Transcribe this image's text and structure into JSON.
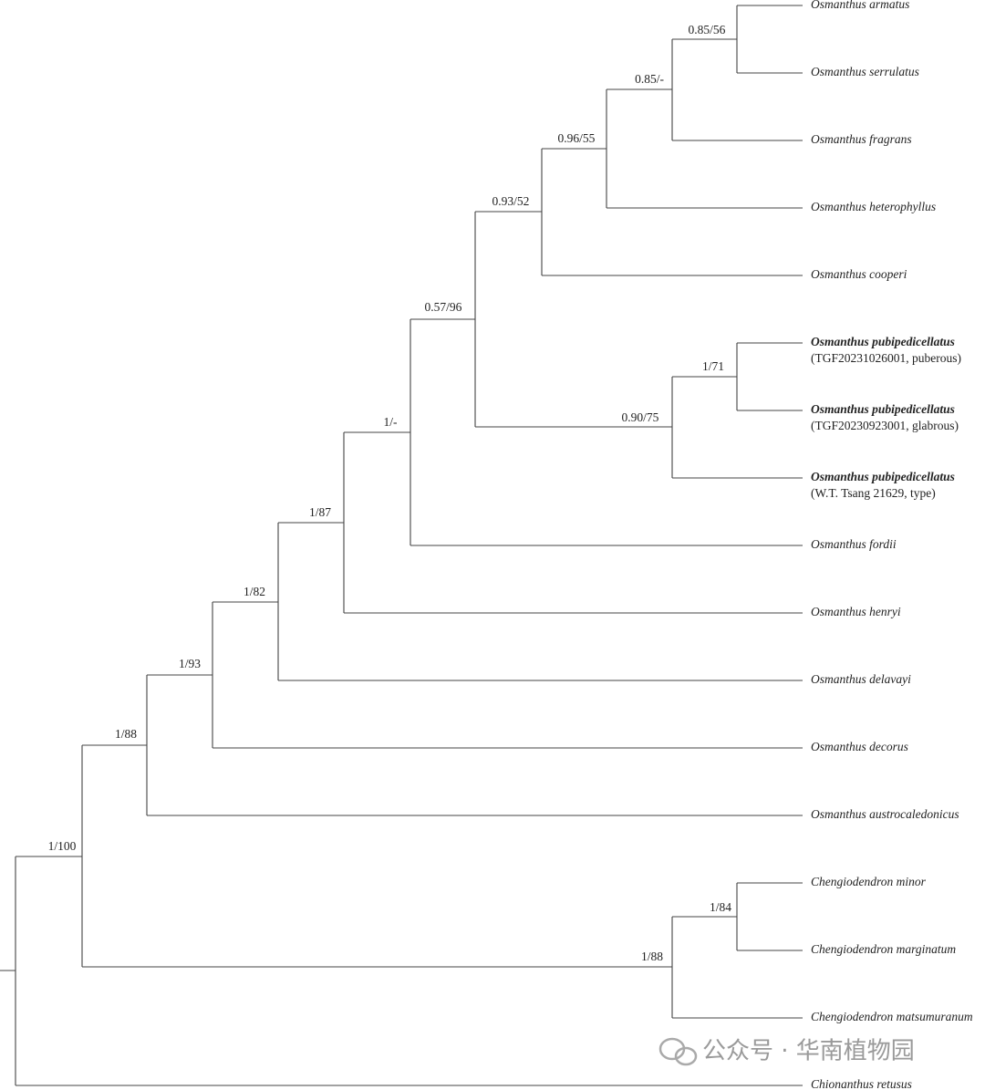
{
  "leaves": [
    {
      "name": "Osmanthus armatus"
    },
    {
      "name": "Osmanthus serrulatus"
    },
    {
      "name": "Osmanthus fragrans"
    },
    {
      "name": "Osmanthus heterophyllus"
    },
    {
      "name": "Osmanthus cooperi"
    },
    {
      "name": "Osmanthus pubipedicellatus",
      "note": "(TGF20231026001, puberous)"
    },
    {
      "name": "Osmanthus pubipedicellatus",
      "note": "(TGF20230923001, glabrous)"
    },
    {
      "name": "Osmanthus pubipedicellatus",
      "note": "(W.T. Tsang 21629, type)"
    },
    {
      "name": "Osmanthus fordii"
    },
    {
      "name": "Osmanthus henryi"
    },
    {
      "name": "Osmanthus delavayi"
    },
    {
      "name": "Osmanthus decorus"
    },
    {
      "name": "Osmanthus austrocaledonicus"
    },
    {
      "name": "Chengiodendron minor"
    },
    {
      "name": "Chengiodendron marginatum"
    },
    {
      "name": "Chengiodendron matsumuranum"
    },
    {
      "name": "Chionanthus retusus"
    }
  ],
  "supports": [
    "0.85/56",
    "0.85/-",
    "0.96/55",
    "0.93/52",
    "1/71",
    "0.90/75",
    "0.57/96",
    "1/-",
    "1/87",
    "1/82",
    "1/93",
    "1/88",
    "1/84",
    "1/88",
    "1/100"
  ],
  "watermark": "公众号 · 华南植物园"
}
